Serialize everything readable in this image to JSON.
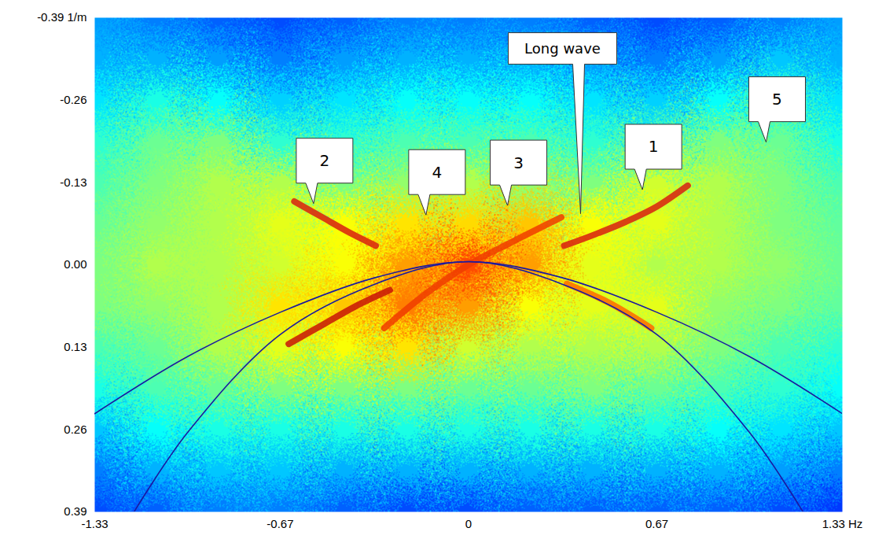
{
  "chart_data": {
    "type": "heatmap",
    "xlim": [
      -1.33,
      1.33
    ],
    "ylim": [
      -0.39,
      0.39
    ],
    "xticks": [
      -1.33,
      -0.67,
      0,
      0.67,
      {
        "value": 1.33,
        "label": "1.33 Hz"
      }
    ],
    "yticks": [
      {
        "value": -0.39,
        "label": "-0.39 1/m"
      },
      -0.26,
      -0.13,
      {
        "value": 0,
        "label": "0.00"
      },
      0.13,
      0.26,
      0.39
    ],
    "color_range": [
      0,
      1
    ],
    "x": [
      -1.33,
      -1.11,
      -0.89,
      -0.67,
      -0.44,
      -0.22,
      0,
      0.22,
      0.44,
      0.67,
      0.89,
      1.11,
      1.33
    ],
    "y": [
      -0.39,
      -0.325,
      -0.26,
      -0.195,
      -0.13,
      -0.065,
      0,
      0.065,
      0.13,
      0.195,
      0.26,
      0.325,
      0.39
    ],
    "values": [
      [
        0.28,
        0.25,
        0.22,
        0.2,
        0.22,
        0.25,
        0.25,
        0.25,
        0.22,
        0.2,
        0.22,
        0.25,
        0.28
      ],
      [
        0.3,
        0.3,
        0.28,
        0.25,
        0.28,
        0.3,
        0.3,
        0.3,
        0.28,
        0.25,
        0.28,
        0.32,
        0.3
      ],
      [
        0.35,
        0.4,
        0.38,
        0.33,
        0.35,
        0.38,
        0.38,
        0.38,
        0.35,
        0.33,
        0.38,
        0.42,
        0.35
      ],
      [
        0.42,
        0.48,
        0.5,
        0.42,
        0.42,
        0.45,
        0.45,
        0.45,
        0.42,
        0.45,
        0.5,
        0.48,
        0.4
      ],
      [
        0.45,
        0.5,
        0.55,
        0.55,
        0.5,
        0.52,
        0.55,
        0.52,
        0.5,
        0.58,
        0.55,
        0.5,
        0.45
      ],
      [
        0.48,
        0.52,
        0.55,
        0.6,
        0.62,
        0.65,
        0.66,
        0.68,
        0.62,
        0.6,
        0.55,
        0.5,
        0.47
      ],
      [
        0.5,
        0.55,
        0.55,
        0.58,
        0.62,
        0.72,
        0.8,
        0.72,
        0.6,
        0.55,
        0.55,
        0.52,
        0.48
      ],
      [
        0.5,
        0.52,
        0.55,
        0.65,
        0.68,
        0.75,
        0.72,
        0.62,
        0.6,
        0.6,
        0.52,
        0.5,
        0.47
      ],
      [
        0.45,
        0.48,
        0.55,
        0.6,
        0.62,
        0.65,
        0.58,
        0.55,
        0.55,
        0.55,
        0.5,
        0.45,
        0.42
      ],
      [
        0.4,
        0.45,
        0.48,
        0.5,
        0.5,
        0.5,
        0.48,
        0.48,
        0.5,
        0.48,
        0.45,
        0.42,
        0.38
      ],
      [
        0.32,
        0.38,
        0.4,
        0.4,
        0.4,
        0.4,
        0.4,
        0.4,
        0.4,
        0.4,
        0.38,
        0.35,
        0.32
      ],
      [
        0.25,
        0.3,
        0.32,
        0.32,
        0.3,
        0.3,
        0.3,
        0.3,
        0.3,
        0.3,
        0.3,
        0.28,
        0.25
      ],
      [
        0.2,
        0.22,
        0.25,
        0.25,
        0.22,
        0.2,
        0.2,
        0.22,
        0.22,
        0.22,
        0.22,
        0.2,
        0.18
      ]
    ],
    "series": [
      {
        "type": "band",
        "color": "#d81e10",
        "x": [
          0.34,
          0.45,
          0.56,
          0.67,
          0.78
        ],
        "values": [
          -0.03,
          -0.048,
          -0.068,
          -0.092,
          -0.125
        ]
      },
      {
        "type": "band",
        "color": "#d81e10",
        "x": [
          -0.33,
          -0.42,
          -0.52,
          -0.62
        ],
        "values": [
          -0.03,
          -0.05,
          -0.075,
          -0.1
        ]
      },
      {
        "type": "band",
        "color": "#c81408",
        "x": [
          -0.28,
          -0.4,
          -0.52,
          -0.64
        ],
        "values": [
          0.04,
          0.065,
          0.095,
          0.125
        ]
      },
      {
        "type": "band",
        "color": "#ff6a00",
        "x": [
          0.35,
          0.5,
          0.65
        ],
        "values": [
          0.03,
          0.06,
          0.1
        ]
      },
      {
        "type": "band",
        "color": "#f03c00",
        "x": [
          -0.3,
          -0.15,
          0,
          0.15,
          0.33
        ],
        "values": [
          0.1,
          0.045,
          0,
          -0.035,
          -0.075
        ]
      },
      {
        "type": "line",
        "color": "#1a1aa0",
        "x": [
          -1.33,
          -1.0,
          -0.67,
          -0.33,
          0,
          0.33,
          0.67,
          1.0,
          1.33
        ],
        "values": [
          0.235,
          0.145,
          0.075,
          0.02,
          -0.005,
          0.02,
          0.075,
          0.145,
          0.235
        ]
      },
      {
        "type": "line",
        "color": "#1a1aa0",
        "x": [
          -1.19,
          -1.0,
          -0.67,
          -0.33,
          0,
          0.33,
          0.67,
          1.0,
          1.19
        ],
        "values": [
          0.39,
          0.265,
          0.11,
          0.03,
          -0.005,
          0.03,
          0.11,
          0.265,
          0.39
        ]
      }
    ],
    "annotations": [
      {
        "text": "2",
        "x": -0.55,
        "y": -0.096
      },
      {
        "text": "4",
        "x": -0.15,
        "y": -0.078
      },
      {
        "text": "3",
        "x": 0.14,
        "y": -0.093
      },
      {
        "text": "Long wave",
        "x": 0.4,
        "y": -0.08
      },
      {
        "text": "1",
        "x": 0.62,
        "y": -0.118
      },
      {
        "text": "5",
        "x": 1.06,
        "y": -0.193
      }
    ]
  }
}
